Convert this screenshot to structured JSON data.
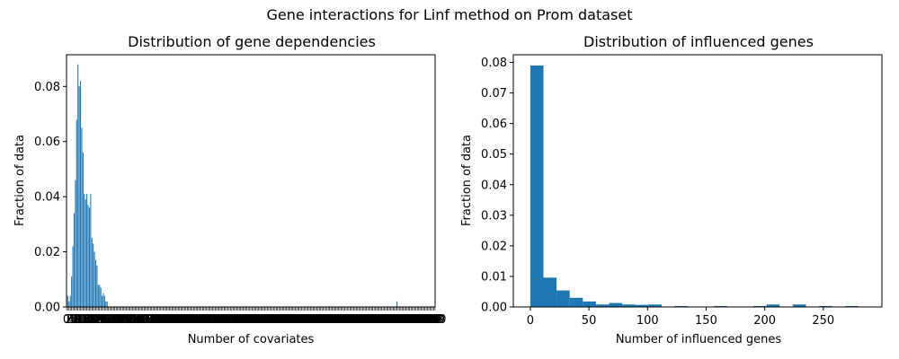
{
  "figure": {
    "suptitle": "Gene interactions for Linf method on Prom dataset"
  },
  "colors": {
    "bar": "#1f77b4",
    "axis": "#000000",
    "background": "#ffffff"
  },
  "chart_data": [
    {
      "type": "bar",
      "title": "Distribution of gene dependencies",
      "xlabel": "Number of covariates",
      "ylabel": "Fraction of data",
      "ylim": [
        0,
        0.0915
      ],
      "yticks": [
        "0.00",
        "0.02",
        "0.04",
        "0.06",
        "0.08"
      ],
      "xlim": [
        0,
        290
      ],
      "x_tick_labels_overlapping": true,
      "grid": false,
      "x": [
        1,
        2,
        3,
        4,
        5,
        6,
        7,
        8,
        9,
        10,
        11,
        12,
        13,
        14,
        15,
        16,
        17,
        18,
        19,
        20,
        21,
        22,
        23,
        24,
        25,
        26,
        27,
        28,
        29,
        30,
        31,
        32,
        260
      ],
      "values": [
        0.004,
        0.002,
        0.004,
        0.011,
        0.022,
        0.034,
        0.046,
        0.068,
        0.088,
        0.08,
        0.082,
        0.065,
        0.056,
        0.041,
        0.039,
        0.041,
        0.037,
        0.036,
        0.041,
        0.025,
        0.023,
        0.02,
        0.017,
        0.015,
        0.008,
        0.008,
        0.007,
        0.004,
        0.005,
        0.004,
        0.002,
        0.002,
        0.002
      ]
    },
    {
      "type": "bar",
      "title": "Distribution of influenced genes",
      "xlabel": "Number of influenced genes",
      "ylabel": "Fraction of data",
      "ylim": [
        0,
        0.0825
      ],
      "yticks": [
        "0.00",
        "0.01",
        "0.02",
        "0.03",
        "0.04",
        "0.05",
        "0.06",
        "0.07",
        "0.08"
      ],
      "xlim": [
        -14.5,
        300
      ],
      "xticks": [
        "0",
        "50",
        "100",
        "150",
        "200",
        "250"
      ],
      "grid": false,
      "bin_width": 11.2,
      "bins_start": [
        0,
        11.2,
        22.4,
        33.6,
        44.8,
        56,
        67.2,
        78.4,
        89.6,
        100.8,
        112,
        123.2,
        134.4,
        145.6,
        156.8,
        168,
        179.2,
        190.4,
        201.6,
        212.8,
        224,
        235.2,
        246.4,
        257.6,
        268.8
      ],
      "values": [
        0.079,
        0.0096,
        0.0054,
        0.003,
        0.0018,
        0.0008,
        0.0013,
        0.0008,
        0.0007,
        0.0008,
        0,
        0.0003,
        0,
        0,
        0.0003,
        0,
        0,
        0.0003,
        0.0008,
        0,
        0.0008,
        0,
        0.0003,
        0,
        0.0003
      ]
    }
  ]
}
